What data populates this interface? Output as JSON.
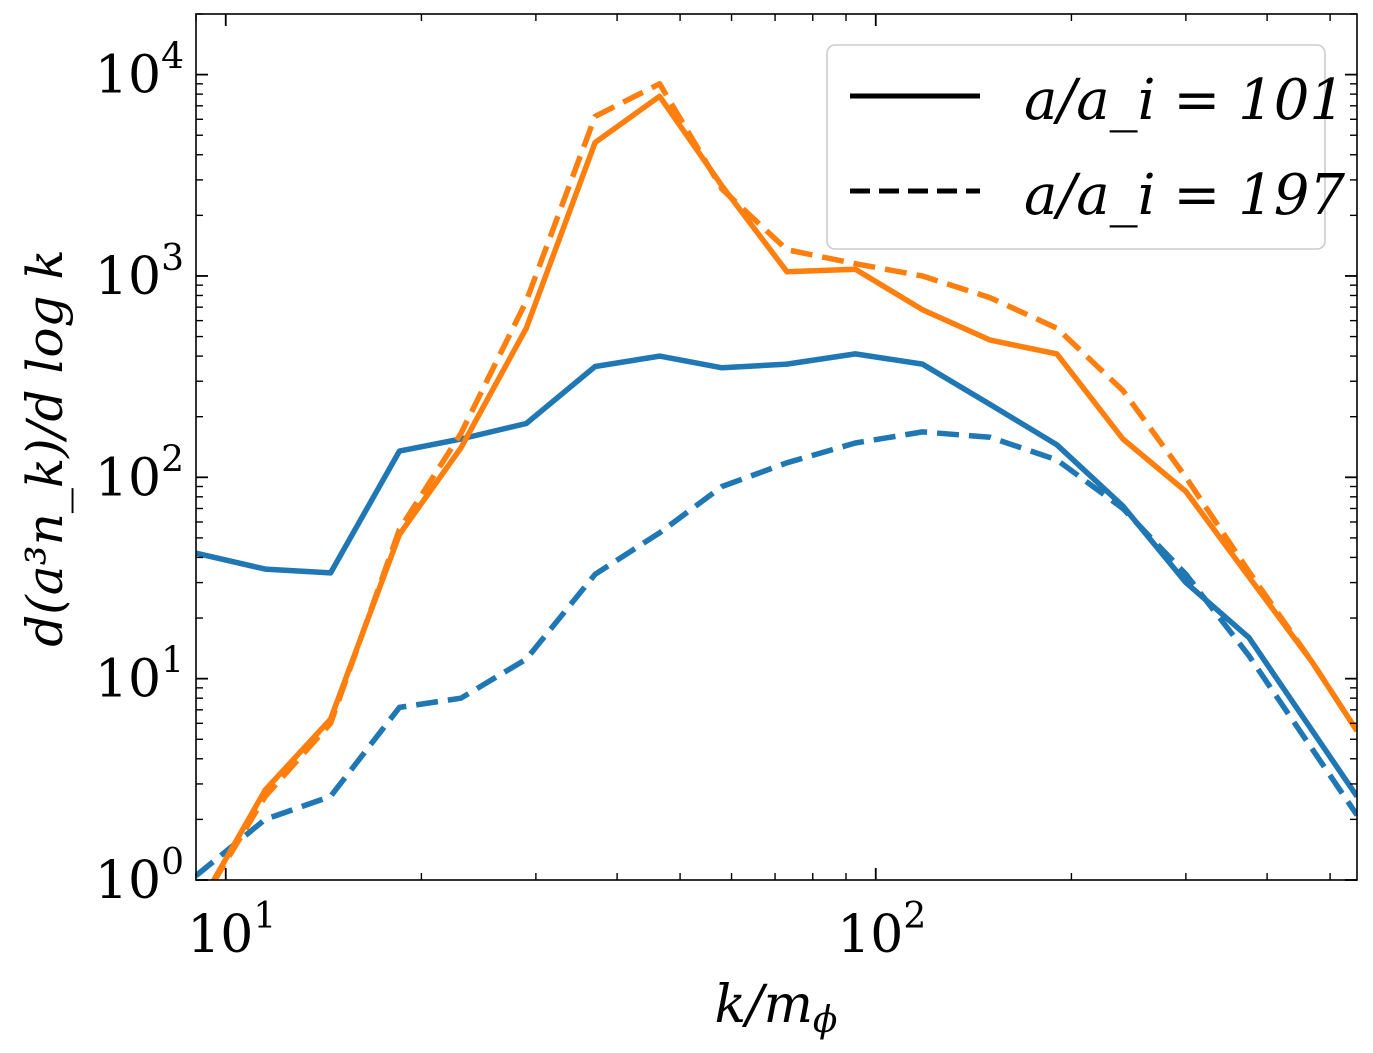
{
  "chart_data": {
    "type": "line",
    "xscale": "log",
    "yscale": "log",
    "xlim": [
      9.0,
      550
    ],
    "ylim": [
      1,
      20000
    ],
    "x_ticks": [
      {
        "value": 10,
        "mantissa": "10",
        "exp": "1"
      },
      {
        "value": 100,
        "mantissa": "10",
        "exp": "2"
      }
    ],
    "y_ticks": [
      {
        "value": 1,
        "mantissa": "10",
        "exp": "0"
      },
      {
        "value": 10,
        "mantissa": "10",
        "exp": "1"
      },
      {
        "value": 100,
        "mantissa": "10",
        "exp": "2"
      },
      {
        "value": 1000,
        "mantissa": "10",
        "exp": "3"
      },
      {
        "value": 10000,
        "mantissa": "10",
        "exp": "4"
      }
    ],
    "xlabel": "k/m",
    "xlabel_sub": "ϕ",
    "ylabel": "d(a³n_k)/d log k",
    "grid": false,
    "legend": {
      "placement": "top-right",
      "entries": [
        {
          "label": "a/a_i = 101",
          "style": "solid"
        },
        {
          "label": "a/a_i = 197",
          "style": "dashed"
        }
      ]
    },
    "series": [
      {
        "color": "#1f77b4",
        "style": "solid",
        "points": [
          [
            9.0,
            42
          ],
          [
            11.5,
            35
          ],
          [
            14.5,
            33.5
          ],
          [
            18.5,
            135
          ],
          [
            23,
            155
          ],
          [
            29,
            185
          ],
          [
            37,
            355
          ],
          [
            46.5,
            400
          ],
          [
            58,
            350
          ],
          [
            73,
            365
          ],
          [
            93,
            410
          ],
          [
            118,
            365
          ],
          [
            150,
            230
          ],
          [
            190,
            145
          ],
          [
            240,
            72
          ],
          [
            300,
            30
          ],
          [
            375,
            16
          ],
          [
            550,
            2.6
          ]
        ]
      },
      {
        "color": "#1f77b4",
        "style": "dashed",
        "points": [
          [
            9.0,
            1.05
          ],
          [
            11.5,
            2.0
          ],
          [
            14.5,
            2.6
          ],
          [
            18.5,
            7.2
          ],
          [
            23,
            8.0
          ],
          [
            29,
            12.5
          ],
          [
            37,
            33
          ],
          [
            46.5,
            53
          ],
          [
            58,
            90
          ],
          [
            73,
            118
          ],
          [
            93,
            148
          ],
          [
            118,
            168
          ],
          [
            150,
            158
          ],
          [
            190,
            122
          ],
          [
            240,
            70
          ],
          [
            300,
            33
          ],
          [
            375,
            13
          ],
          [
            550,
            2.1
          ]
        ]
      },
      {
        "color": "#ff7f0e",
        "style": "solid",
        "points": [
          [
            9.0,
            0.7
          ],
          [
            11.5,
            2.8
          ],
          [
            14.5,
            6.3
          ],
          [
            18.5,
            52
          ],
          [
            23,
            140
          ],
          [
            29,
            550
          ],
          [
            37,
            4600
          ],
          [
            46.5,
            7800
          ],
          [
            58,
            2800
          ],
          [
            73,
            1050
          ],
          [
            93,
            1080
          ],
          [
            118,
            680
          ],
          [
            150,
            480
          ],
          [
            190,
            410
          ],
          [
            240,
            155
          ],
          [
            300,
            85
          ],
          [
            375,
            32
          ],
          [
            470,
            12
          ],
          [
            550,
            5.5
          ]
        ]
      },
      {
        "color": "#ff7f0e",
        "style": "dashed",
        "points": [
          [
            9.0,
            0.7
          ],
          [
            11.5,
            2.6
          ],
          [
            14.5,
            6.0
          ],
          [
            18.5,
            55
          ],
          [
            23,
            165
          ],
          [
            29,
            750
          ],
          [
            37,
            6200
          ],
          [
            46.5,
            9000
          ],
          [
            58,
            2700
          ],
          [
            73,
            1350
          ],
          [
            93,
            1150
          ],
          [
            118,
            1000
          ],
          [
            150,
            780
          ],
          [
            190,
            550
          ],
          [
            240,
            270
          ],
          [
            300,
            100
          ],
          [
            375,
            34
          ],
          [
            470,
            12
          ],
          [
            550,
            5.5
          ]
        ]
      }
    ]
  }
}
